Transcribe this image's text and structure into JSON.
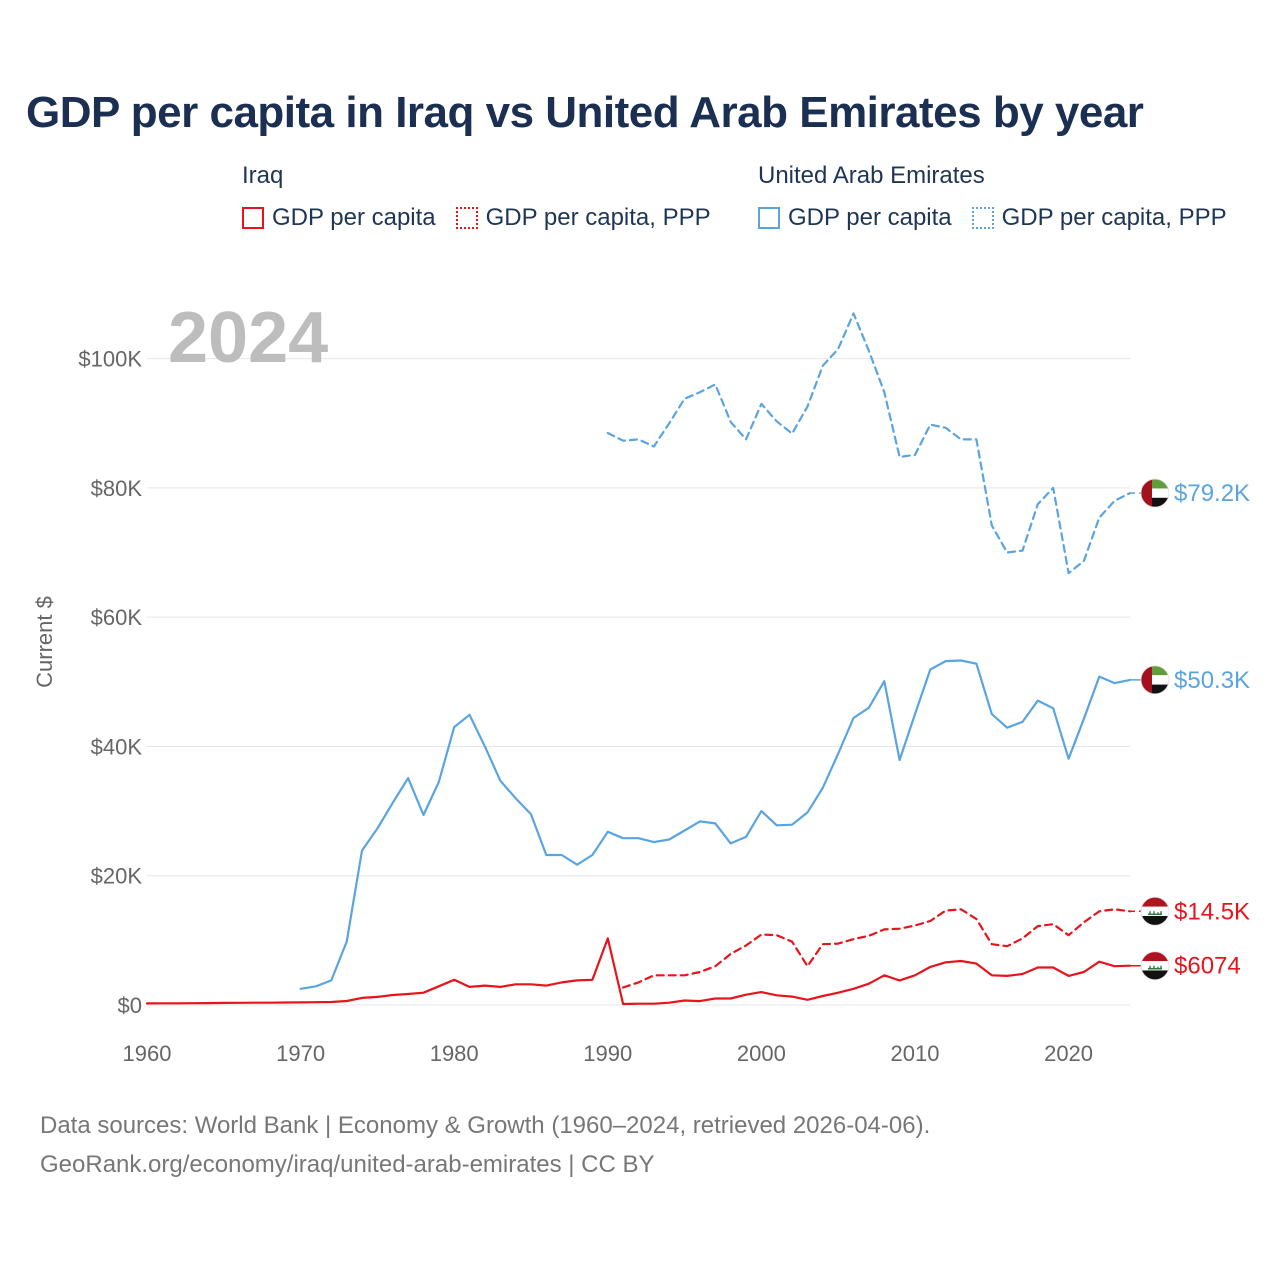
{
  "title": "GDP per capita in Iraq vs United Arab Emirates by year",
  "legend": {
    "iraq": {
      "name": "Iraq",
      "gdp": "GDP per capita",
      "ppp": "GDP per capita, PPP"
    },
    "uae": {
      "name": "United Arab Emirates",
      "gdp": "GDP per capita",
      "ppp": "GDP per capita, PPP"
    }
  },
  "colors": {
    "iraq": "#e8141b",
    "uae": "#5aa4e0",
    "grid": "#e6e6e6",
    "year": "#bdbdbd"
  },
  "footer": {
    "line1": "Data sources: World Bank | Economy & Growth (1960–2024, retrieved 2026-04-06).",
    "line2": "GeoRank.org/economy/iraq/united-arab-emirates | CC BY"
  },
  "chart_data": {
    "type": "line",
    "current_year": "2024",
    "ylabel": "Current $",
    "xlim": [
      1960,
      2024
    ],
    "ylim": [
      0,
      110000
    ],
    "x_ticks": [
      1960,
      1970,
      1980,
      1990,
      2000,
      2010,
      2020
    ],
    "x_tick_labels": [
      "1960",
      "1970",
      "1980",
      "1990",
      "2000",
      "2010",
      "2020"
    ],
    "y_ticks": [
      0,
      20000,
      40000,
      60000,
      80000,
      100000
    ],
    "y_tick_labels": [
      "$0",
      "$20K",
      "$40K",
      "$60K",
      "$80K",
      "$100K"
    ],
    "grid": true,
    "series": [
      {
        "name": "United Arab Emirates GDP per capita, PPP",
        "country": "uae",
        "style": "dashed",
        "end_label": "$79.2K",
        "x": [
          1990,
          1991,
          1992,
          1993,
          1994,
          1995,
          1996,
          1997,
          1998,
          1999,
          2000,
          2001,
          2002,
          2003,
          2004,
          2005,
          2006,
          2007,
          2008,
          2009,
          2010,
          2011,
          2012,
          2013,
          2014,
          2015,
          2016,
          2017,
          2018,
          2019,
          2020,
          2021,
          2022,
          2023,
          2024
        ],
        "y": [
          88500,
          87300,
          87500,
          86400,
          90000,
          93800,
          94800,
          96000,
          90200,
          87500,
          93000,
          90300,
          88400,
          92600,
          98900,
          101500,
          107000,
          101200,
          94800,
          84800,
          85100,
          89800,
          89300,
          87500,
          87500,
          74200,
          70000,
          70300,
          77500,
          80000,
          66800,
          68700,
          75400,
          78000,
          79200
        ]
      },
      {
        "name": "United Arab Emirates GDP per capita",
        "country": "uae",
        "style": "solid",
        "end_label": "$50.3K",
        "x": [
          1970,
          1971,
          1972,
          1973,
          1974,
          1975,
          1976,
          1977,
          1978,
          1979,
          1980,
          1981,
          1982,
          1983,
          1984,
          1985,
          1986,
          1987,
          1988,
          1989,
          1990,
          1991,
          1992,
          1993,
          1994,
          1995,
          1996,
          1997,
          1998,
          1999,
          2000,
          2001,
          2002,
          2003,
          2004,
          2005,
          2006,
          2007,
          2008,
          2009,
          2010,
          2011,
          2012,
          2013,
          2014,
          2015,
          2016,
          2017,
          2018,
          2019,
          2020,
          2021,
          2022,
          2023,
          2024
        ],
        "y": [
          2500,
          2900,
          3800,
          9800,
          23900,
          27300,
          31300,
          35100,
          29400,
          34500,
          43000,
          44900,
          40000,
          34700,
          32000,
          29500,
          23200,
          23200,
          21700,
          23200,
          26800,
          25800,
          25800,
          25200,
          25600,
          27000,
          28400,
          28100,
          25000,
          26000,
          30000,
          27800,
          27900,
          29800,
          33600,
          38900,
          44400,
          46000,
          50100,
          37900,
          45000,
          51900,
          53200,
          53300,
          52800,
          45000,
          42900,
          43800,
          47100,
          45900,
          38100,
          44300,
          50800,
          49800,
          50300
        ]
      },
      {
        "name": "Iraq GDP per capita, PPP",
        "country": "iraq",
        "style": "dashed",
        "end_label": "$14.5K",
        "x": [
          1991,
          1992,
          1993,
          1994,
          1995,
          1996,
          1997,
          1998,
          1999,
          2000,
          2001,
          2002,
          2003,
          2004,
          2005,
          2006,
          2007,
          2008,
          2009,
          2010,
          2011,
          2012,
          2013,
          2014,
          2015,
          2016,
          2017,
          2018,
          2019,
          2020,
          2021,
          2022,
          2023,
          2024
        ],
        "y": [
          2700,
          3500,
          4600,
          4600,
          4600,
          5100,
          6000,
          7900,
          9200,
          10900,
          10800,
          9800,
          6000,
          9400,
          9500,
          10200,
          10700,
          11700,
          11800,
          12300,
          13000,
          14600,
          14800,
          13300,
          9400,
          9100,
          10300,
          12200,
          12500,
          10800,
          12800,
          14500,
          14800,
          14500
        ]
      },
      {
        "name": "Iraq GDP per capita",
        "country": "iraq",
        "style": "solid",
        "end_label": "$6074",
        "x": [
          1960,
          1961,
          1962,
          1963,
          1964,
          1965,
          1966,
          1967,
          1968,
          1969,
          1970,
          1971,
          1972,
          1973,
          1974,
          1975,
          1976,
          1977,
          1978,
          1979,
          1980,
          1981,
          1982,
          1983,
          1984,
          1985,
          1986,
          1987,
          1988,
          1989,
          1990,
          1991,
          1992,
          1993,
          1994,
          1995,
          1996,
          1997,
          1998,
          1999,
          2000,
          2001,
          2002,
          2003,
          2004,
          2005,
          2006,
          2007,
          2008,
          2009,
          2010,
          2011,
          2012,
          2013,
          2014,
          2015,
          2016,
          2017,
          2018,
          2019,
          2020,
          2021,
          2022,
          2023,
          2024
        ],
        "y": [
          250,
          260,
          270,
          280,
          300,
          320,
          340,
          350,
          360,
          380,
          400,
          430,
          470,
          620,
          1100,
          1250,
          1550,
          1700,
          1900,
          2900,
          3900,
          2800,
          3000,
          2800,
          3200,
          3200,
          3000,
          3500,
          3800,
          3900,
          10300,
          150,
          200,
          200,
          350,
          700,
          600,
          1000,
          1000,
          1600,
          2000,
          1500,
          1300,
          800,
          1400,
          1900,
          2500,
          3300,
          4600,
          3800,
          4600,
          5900,
          6600,
          6800,
          6400,
          4600,
          4500,
          4800,
          5800,
          5800,
          4500,
          5100,
          6700,
          6000,
          6074
        ]
      }
    ]
  }
}
